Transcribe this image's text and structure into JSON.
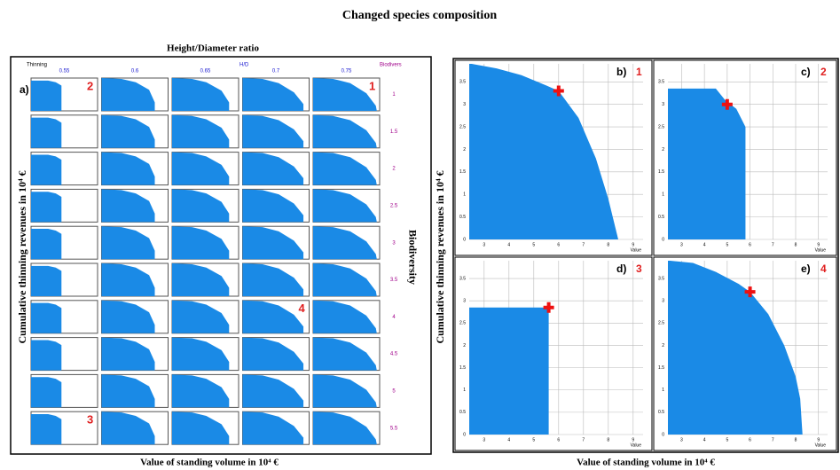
{
  "title": "Changed species composition",
  "left": {
    "label": "a)",
    "title": "Height/Diameter ratio",
    "top_left": "Thinning",
    "top_mid": "H/D",
    "top_right": "Biodivers",
    "columns": [
      "0.55",
      "0.6",
      "0.65",
      "0.7",
      "0.75"
    ],
    "rows": [
      "1",
      "1.5",
      "2",
      "2.5",
      "3",
      "3.5",
      "4",
      "4.5",
      "5",
      "5.5"
    ],
    "profiles": [
      [
        [
          2.5,
          3.6
        ],
        [
          4.2,
          3.6
        ],
        [
          5.0,
          3.4
        ],
        [
          5.6,
          3.0
        ],
        [
          5.6,
          0
        ]
      ],
      [
        [
          2.5,
          3.9
        ],
        [
          4.5,
          3.8
        ],
        [
          6.0,
          3.4
        ],
        [
          7.4,
          2.5
        ],
        [
          8.0,
          1.0
        ],
        [
          8.0,
          0
        ]
      ],
      [
        [
          2.5,
          3.9
        ],
        [
          4.5,
          3.8
        ],
        [
          6.0,
          3.4
        ],
        [
          7.6,
          2.4
        ],
        [
          8.4,
          1.0
        ],
        [
          8.4,
          0
        ]
      ],
      [
        [
          2.5,
          3.9
        ],
        [
          4.5,
          3.8
        ],
        [
          6.2,
          3.3
        ],
        [
          7.8,
          2.2
        ],
        [
          8.8,
          0.8
        ],
        [
          8.8,
          0
        ]
      ],
      [
        [
          2.5,
          3.9
        ],
        [
          4.5,
          3.8
        ],
        [
          6.3,
          3.3
        ],
        [
          8.0,
          2.1
        ],
        [
          9.0,
          0.6
        ],
        [
          9.1,
          0
        ]
      ]
    ],
    "callouts": [
      {
        "label": "2",
        "column": 0,
        "row": 0
      },
      {
        "label": "1",
        "column": 4,
        "row": 0
      },
      {
        "label": "4",
        "column": 3,
        "row": 6
      },
      {
        "label": "3",
        "column": 0,
        "row": 9
      }
    ],
    "y_label": "Cumulative thinning revenues in 10⁴ €",
    "x_label": "Value of standing volume in 10⁴ €",
    "side_label": "Biodiversity"
  },
  "right": {
    "y_label": "Cumulative thinning revenues in 10⁴ €",
    "x_label": "Value of standing volume in 10⁴ €",
    "xlim": [
      2.4,
      9.4
    ],
    "ylim": [
      0,
      3.9
    ],
    "xticks": [
      3,
      4,
      5,
      6,
      7,
      8,
      9
    ],
    "yticks": [
      0,
      0.5,
      1,
      1.5,
      2,
      2.5,
      3,
      3.5
    ],
    "x_axis_label": "Value",
    "panels": [
      {
        "label": "b)",
        "number": "1",
        "points": [
          [
            2.5,
            3.9
          ],
          [
            3.5,
            3.8
          ],
          [
            4.5,
            3.65
          ],
          [
            5.5,
            3.42
          ],
          [
            6.0,
            3.3
          ],
          [
            6.8,
            2.7
          ],
          [
            7.5,
            1.8
          ],
          [
            8.0,
            0.9
          ],
          [
            8.4,
            0
          ]
        ],
        "marker": [
          6.0,
          3.3
        ]
      },
      {
        "label": "c)",
        "number": "2",
        "points": [
          [
            2.5,
            3.35
          ],
          [
            4.5,
            3.35
          ],
          [
            4.9,
            3.1
          ],
          [
            5.4,
            2.9
          ],
          [
            5.8,
            2.5
          ],
          [
            5.8,
            0
          ]
        ],
        "marker": [
          5.0,
          3.0
        ]
      },
      {
        "label": "d)",
        "number": "3",
        "points": [
          [
            2.5,
            2.85
          ],
          [
            5.6,
            2.85
          ],
          [
            5.6,
            0
          ]
        ],
        "marker": [
          5.6,
          2.85
        ]
      },
      {
        "label": "e)",
        "number": "4",
        "points": [
          [
            2.5,
            3.9
          ],
          [
            3.5,
            3.85
          ],
          [
            4.5,
            3.65
          ],
          [
            5.5,
            3.38
          ],
          [
            6.0,
            3.2
          ],
          [
            6.8,
            2.7
          ],
          [
            7.5,
            2.0
          ],
          [
            8.0,
            1.3
          ],
          [
            8.2,
            0.8
          ],
          [
            8.3,
            0
          ]
        ],
        "marker": [
          6.0,
          3.2
        ]
      }
    ]
  }
}
